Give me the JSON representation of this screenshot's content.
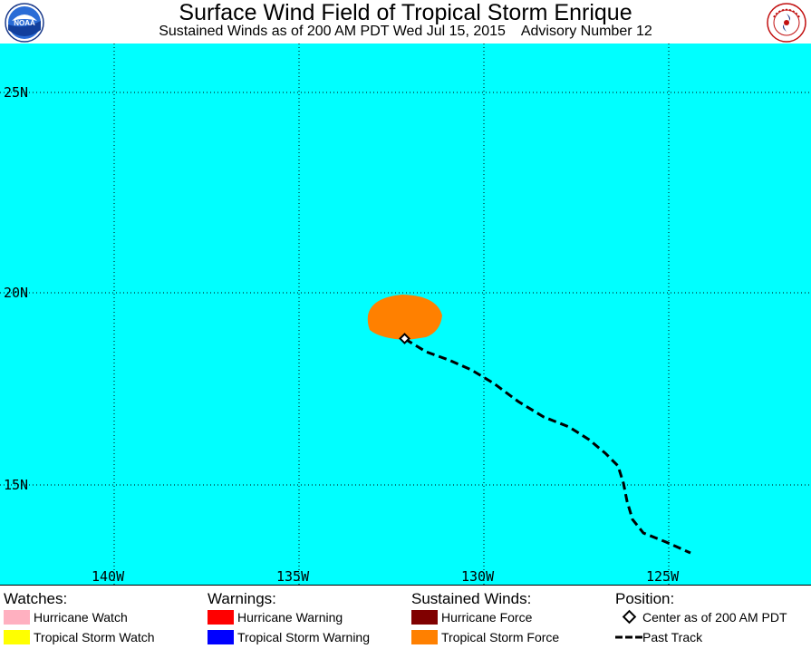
{
  "header": {
    "title": "Surface Wind Field of Tropical Storm Enrique",
    "subtitle": "Sustained Winds as of 200 AM PDT Wed Jul 15, 2015    Advisory Number 12",
    "left_logo": {
      "text": "NOAA",
      "icon": "noaa-logo"
    },
    "right_logo": {
      "text": "NATIONAL WEATHER SERVICE",
      "icon": "nws-logo"
    }
  },
  "map": {
    "background_color": "#00ffff",
    "lat_labels": [
      "25N",
      "20N",
      "15N"
    ],
    "lon_labels": [
      "140W",
      "135W",
      "130W",
      "125W"
    ],
    "storm_center": {
      "lon": "132.2W",
      "lat": "18.8N"
    },
    "wind_field_color": "#ff8000",
    "track_color": "#000000"
  },
  "legend": {
    "watches_heading": "Watches:",
    "hurricane_watch": "Hurricane Watch",
    "tropical_storm_watch": "Tropical Storm Watch",
    "warnings_heading": "Warnings:",
    "hurricane_warning": "Hurricane Warning",
    "tropical_storm_warning": "Tropical Storm Warning",
    "winds_heading": "Sustained Winds:",
    "hurricane_force": "Hurricane Force",
    "tropical_storm_force": "Tropical Storm Force",
    "position_heading": "Position:",
    "center_label": "Center as of 200 AM PDT",
    "past_track_label": "Past Track",
    "colors": {
      "hurricane_watch": "#ffb0c0",
      "tropical_storm_watch": "#ffff00",
      "hurricane_warning": "#ff0000",
      "tropical_storm_warning": "#0000ff",
      "hurricane_force": "#800000",
      "tropical_storm_force": "#ff8000"
    }
  }
}
